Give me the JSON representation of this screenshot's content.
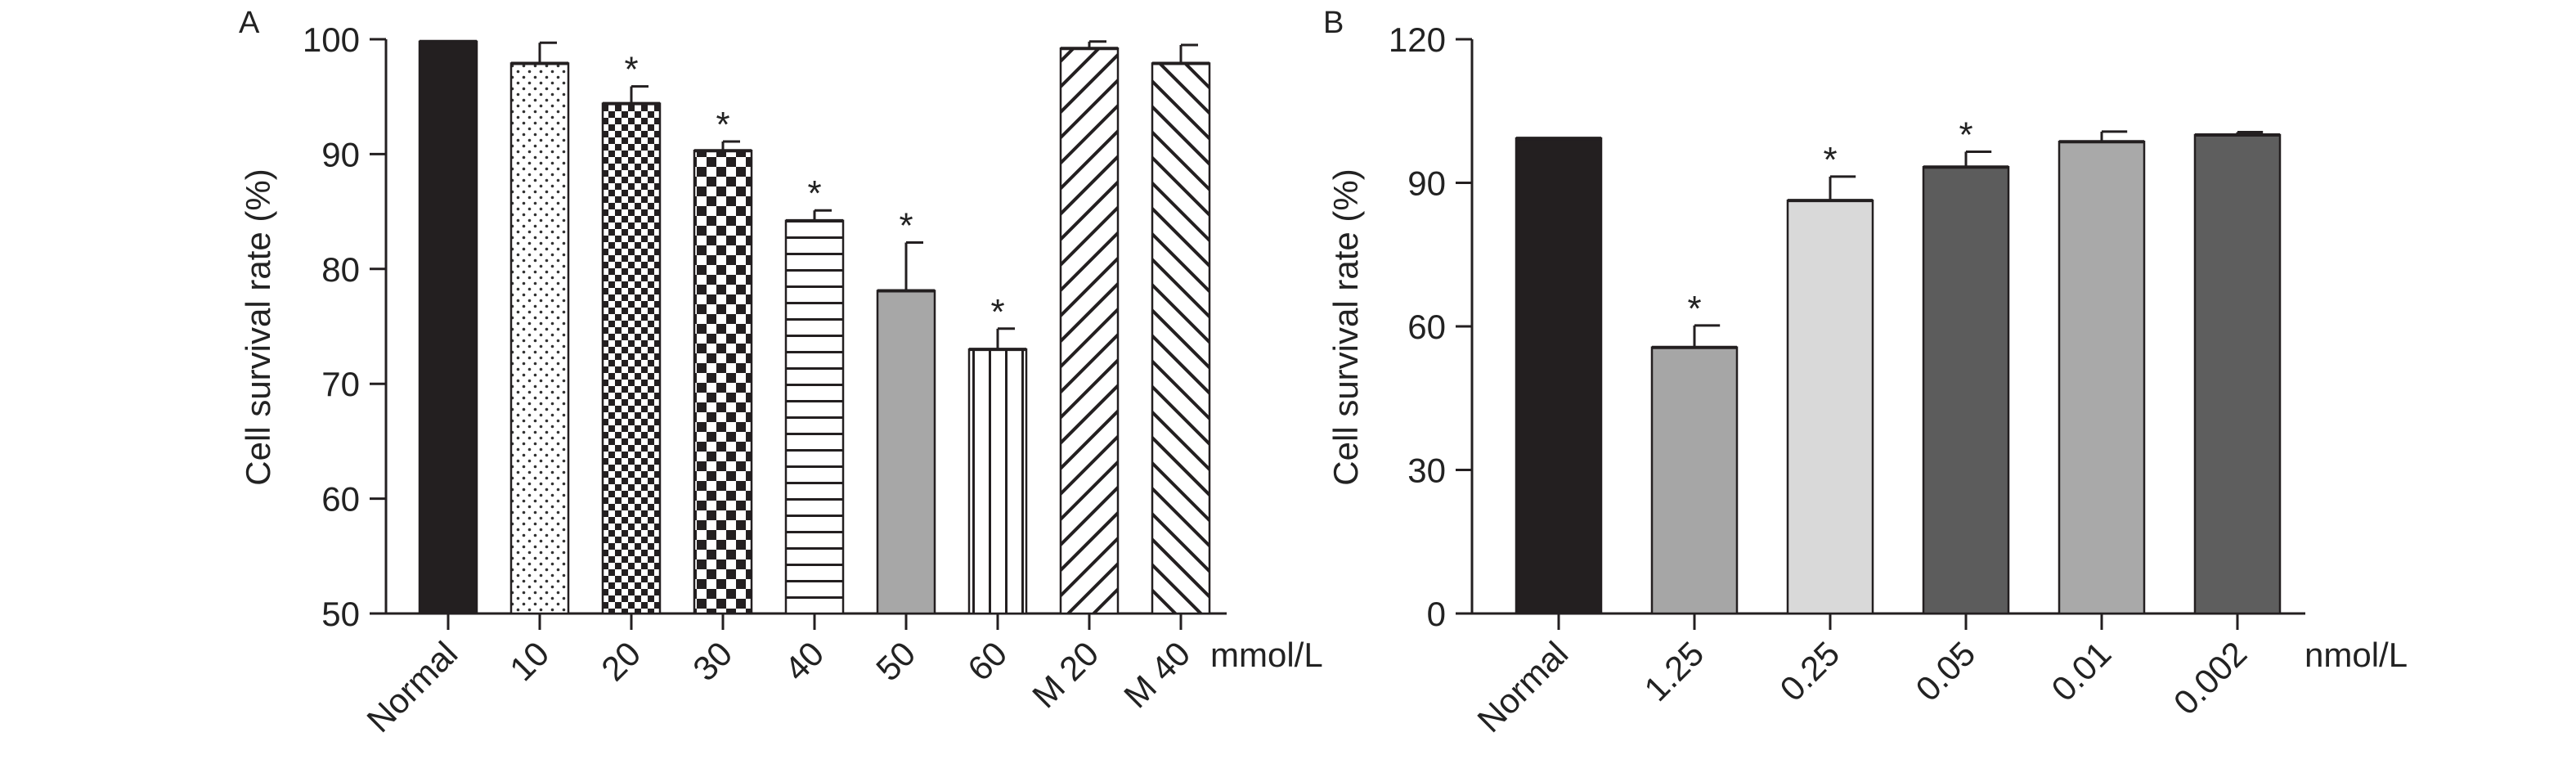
{
  "chart_data": [
    {
      "panel": "A",
      "type": "bar",
      "ylabel": "Cell survival rate (%)",
      "unit_label": "mmol/L",
      "ylim": [
        50,
        100
      ],
      "yticks": [
        50,
        60,
        70,
        80,
        90,
        100
      ],
      "categories": [
        "Normal",
        "10",
        "20",
        "30",
        "40",
        "50",
        "60",
        "M 20",
        "M 40"
      ],
      "values": [
        99.8,
        97.9,
        94.4,
        90.3,
        84.2,
        78.1,
        73.0,
        99.2,
        97.9
      ],
      "errors": [
        0,
        1.8,
        1.5,
        0.8,
        0.9,
        4.2,
        1.8,
        0.6,
        1.6
      ],
      "significant": [
        false,
        false,
        true,
        true,
        true,
        true,
        true,
        false,
        false
      ],
      "fills": [
        "#231f20",
        "dots",
        "check-small",
        "check-large",
        "hlines",
        "#a7a7a7",
        "vlines",
        "diag-right",
        "diag-left"
      ],
      "significance_mark": "*",
      "grid": false
    },
    {
      "panel": "B",
      "type": "bar",
      "ylabel": "Cell survival rate (%)",
      "unit_label": "nmol/L",
      "ylim": [
        0,
        120
      ],
      "yticks": [
        0,
        30,
        60,
        90,
        120
      ],
      "categories": [
        "Normal",
        "1.25",
        "0.25",
        "0.05",
        "0.01",
        "0.002"
      ],
      "values": [
        99.3,
        55.6,
        86.3,
        93.3,
        98.6,
        100.0
      ],
      "errors": [
        0,
        4.6,
        5.0,
        3.2,
        2.1,
        0.6
      ],
      "significant": [
        false,
        true,
        true,
        true,
        false,
        false
      ],
      "colors": [
        "#231f20",
        "#a6a6a6",
        "#d9d9d9",
        "#5c5c5c",
        "#a9a9a9",
        "#5e5e5e"
      ],
      "significance_mark": "*",
      "grid": false
    }
  ]
}
